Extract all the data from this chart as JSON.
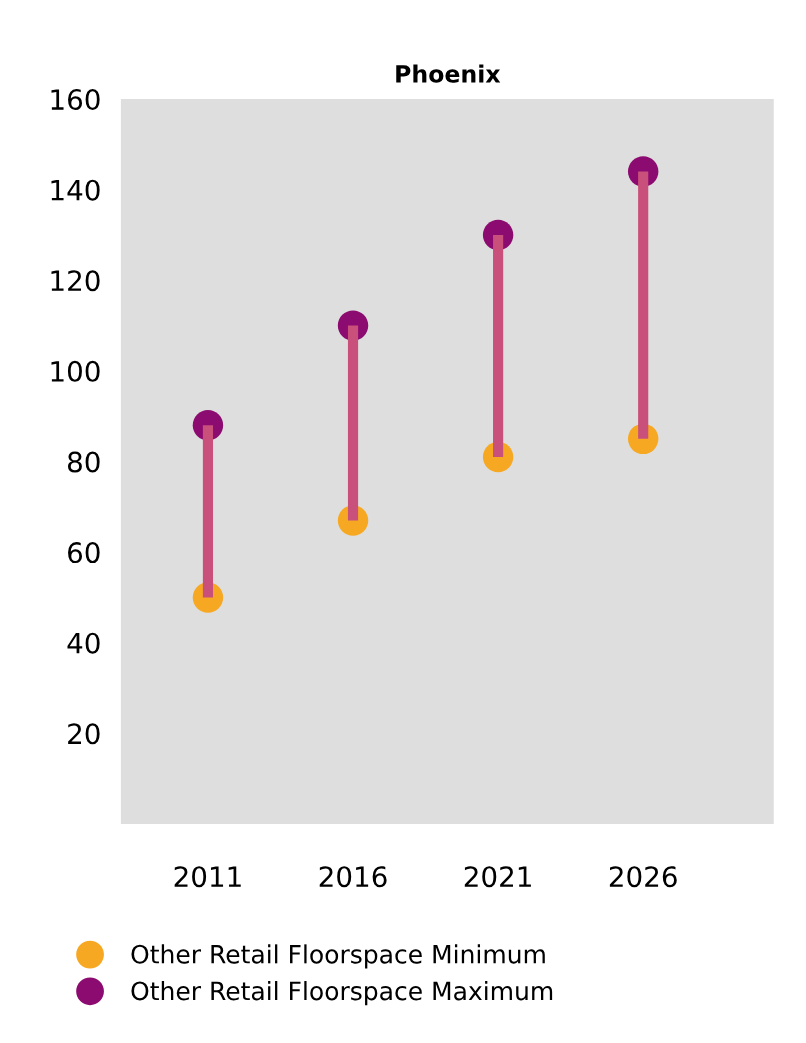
{
  "chart_data": {
    "type": "scatter",
    "title": "Phoenix",
    "categories": [
      "2011",
      "2016",
      "2021",
      "2026"
    ],
    "series": [
      {
        "type": "bar",
        "base": [
          50,
          67,
          81,
          85
        ],
        "values": [
          38,
          43,
          49,
          59
        ],
        "color": "#c8507a"
      },
      {
        "name": "Other Retail Floorspace Minimum",
        "color": "#f7a823",
        "values": [
          50,
          67,
          81,
          85
        ]
      },
      {
        "name": "Other Retail Floorspace Maximum",
        "color": "#8c0b70",
        "values": [
          88,
          110,
          130,
          144
        ]
      }
    ],
    "ylim": [
      0,
      160
    ],
    "yticks": [
      20,
      40,
      60,
      80,
      100,
      120,
      140,
      160
    ],
    "grid": false,
    "legend": "bottom",
    "marker": "circle"
  }
}
